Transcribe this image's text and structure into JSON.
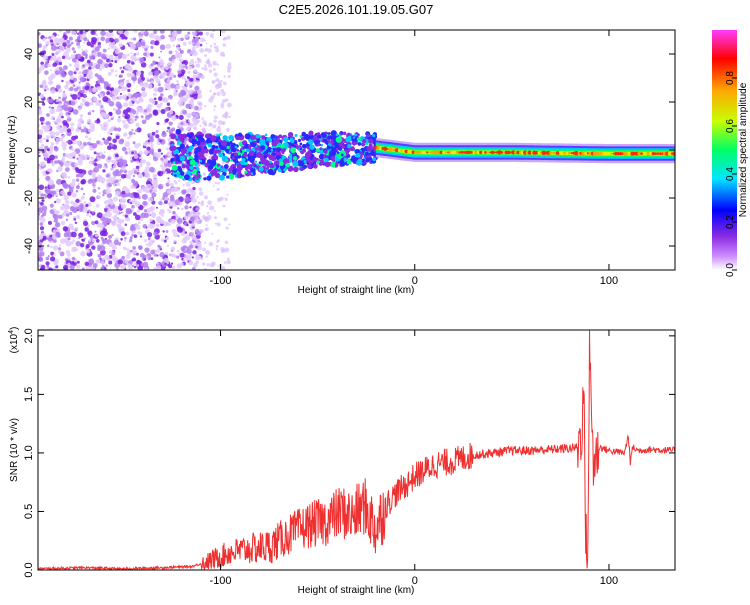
{
  "title": "C2E5.2026.101.19.05.G07",
  "chart_data": [
    {
      "type": "heatmap",
      "title": "C2E5.2026.101.19.05.G07",
      "xlabel": "Height of straight line (km)",
      "ylabel": "Frequency (Hz)",
      "xlim": [
        -194,
        134
      ],
      "ylim": [
        -50,
        50
      ],
      "xticks": [
        -100,
        0,
        100
      ],
      "xtick_labels": [
        "-100",
        "0",
        "100"
      ],
      "yticks": [
        -40,
        -20,
        0,
        20,
        40
      ],
      "ytick_labels": [
        "-40",
        "-20",
        "0",
        "20",
        "40"
      ],
      "grid": false,
      "colorbar": {
        "label": "Normalized spectral amplitude",
        "range": [
          0,
          1
        ],
        "ticks": [
          0.0,
          0.2,
          0.4,
          0.6,
          0.8
        ],
        "tick_labels": [
          "0.0",
          "0.2",
          "0.4",
          "0.6",
          "0.8"
        ],
        "colormap": [
          "#ffffff",
          "#cc88ff",
          "#8a2be2",
          "#0000ff",
          "#00e5ff",
          "#00ff66",
          "#c8ff00",
          "#ffa500",
          "#ff0000",
          "#ff3cff"
        ]
      },
      "description_points": {
        "noise_region_km": [
          -194,
          -110
        ],
        "band_center_hz": [
          {
            "x": -120,
            "y": -3
          },
          {
            "x": -80,
            "y": -2
          },
          {
            "x": -50,
            "y": 0
          },
          {
            "x": -20,
            "y": 1
          },
          {
            "x": 0,
            "y": -1
          },
          {
            "x": 50,
            "y": -1
          },
          {
            "x": 100,
            "y": -1.5
          },
          {
            "x": 134,
            "y": -1.5
          }
        ],
        "peak_amplitude_region_km": [
          -20,
          134
        ]
      }
    },
    {
      "type": "line",
      "xlabel": "Height of straight line (km)",
      "ylabel": "SNR (10 * v/v)",
      "y_scale_label": "(x10",
      "y_scale_exponent": "4",
      "y_scale_suffix": ")",
      "xlim": [
        -194,
        134
      ],
      "ylim": [
        0,
        2.05
      ],
      "xticks": [
        -100,
        0,
        100
      ],
      "xtick_labels": [
        "-100",
        "0",
        "100"
      ],
      "yticks": [
        0.0,
        0.5,
        1.0,
        1.5,
        2.0
      ],
      "ytick_labels": [
        "0.0",
        "0.5",
        "1.0",
        "1.5",
        "2.0"
      ],
      "color": "#ee3030",
      "series": [
        {
          "name": "SNR",
          "x": [
            -194,
            -170,
            -150,
            -130,
            -115,
            -105,
            -95,
            -85,
            -75,
            -65,
            -55,
            -45,
            -38,
            -32,
            -26,
            -20,
            -15,
            -10,
            -5,
            0,
            5,
            10,
            20,
            30,
            40,
            50,
            60,
            70,
            80,
            84,
            86,
            87,
            88,
            89,
            90,
            91,
            92,
            95,
            100,
            108,
            110,
            111,
            112,
            115,
            120,
            134
          ],
          "y": [
            0.01,
            0.02,
            0.01,
            0.02,
            0.03,
            0.08,
            0.15,
            0.18,
            0.2,
            0.3,
            0.38,
            0.42,
            0.5,
            0.45,
            0.55,
            0.35,
            0.55,
            0.65,
            0.72,
            0.8,
            0.85,
            0.9,
            0.93,
            0.98,
            1.0,
            1.02,
            1.02,
            1.03,
            1.04,
            1.05,
            1.2,
            1.6,
            0.3,
            0.1,
            1.85,
            1.4,
            0.9,
            1.05,
            1.02,
            1.0,
            1.15,
            0.9,
            1.05,
            1.02,
            1.03,
            1.02
          ]
        }
      ]
    }
  ]
}
